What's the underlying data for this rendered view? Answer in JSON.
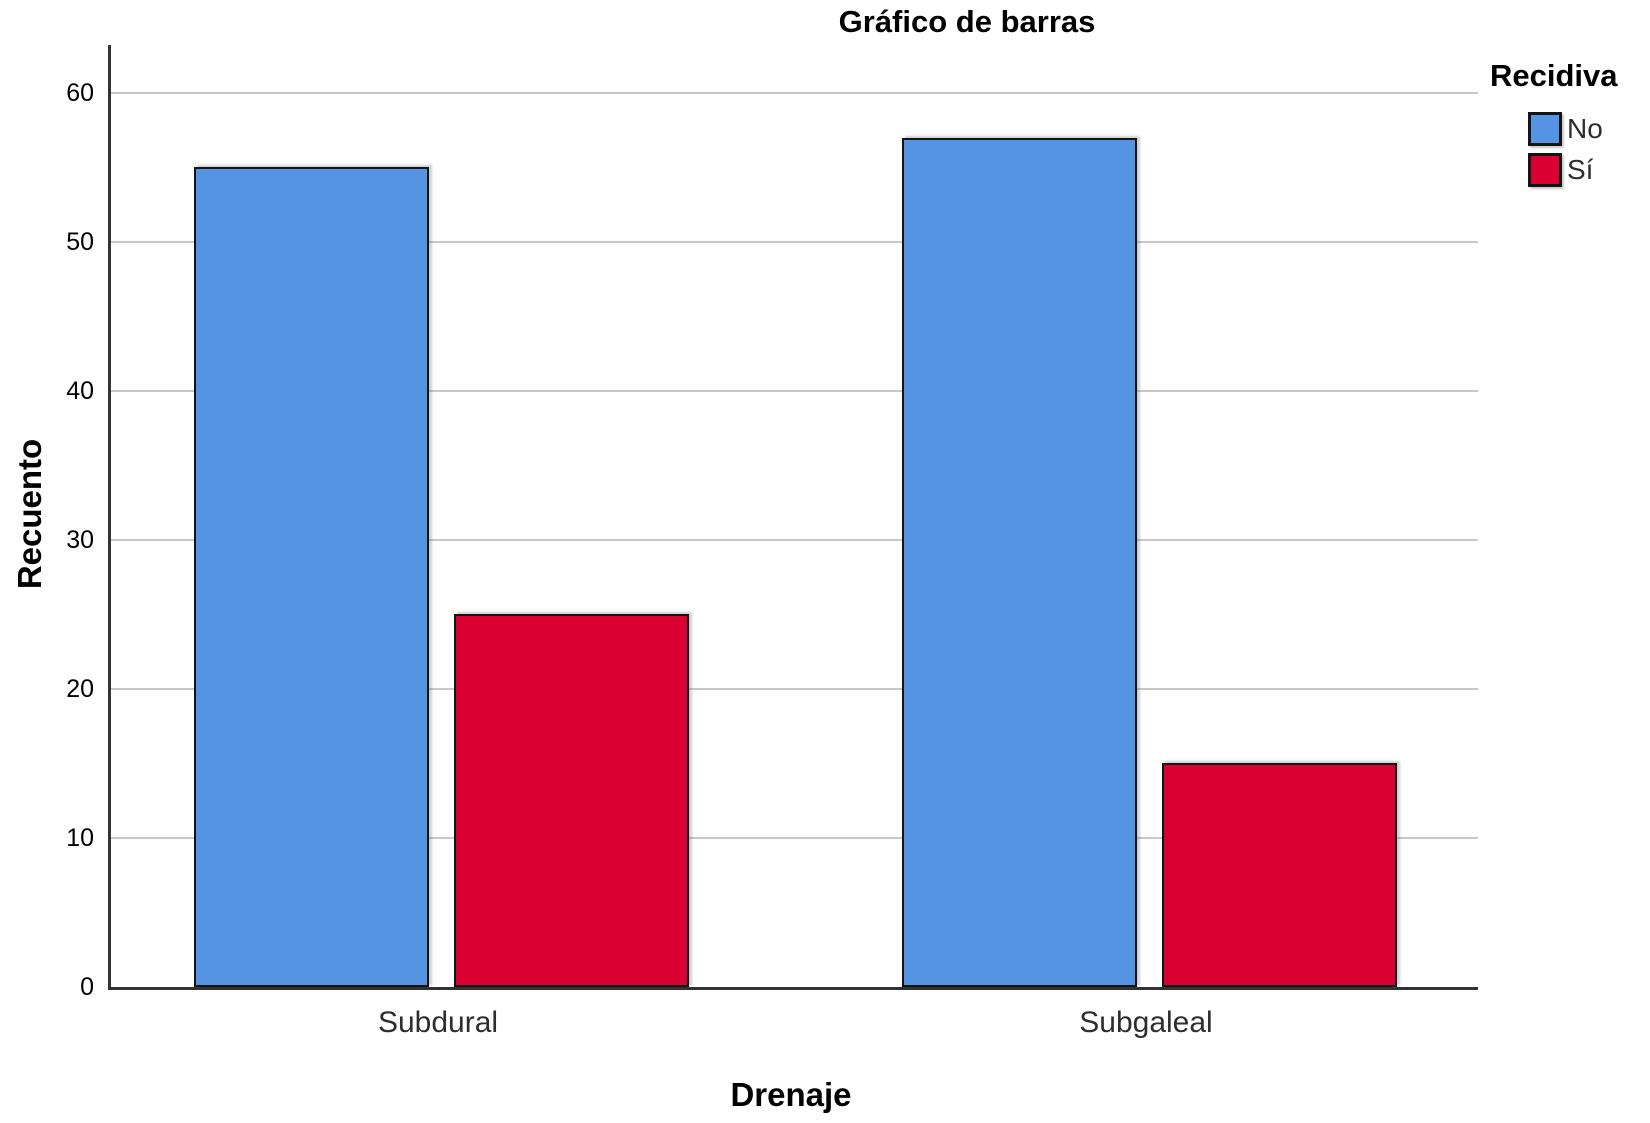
{
  "chart_data": {
    "type": "bar",
    "title": "Gráfico de barras",
    "xlabel": "Drenaje",
    "ylabel": "Recuento",
    "legend_title": "Recidiva",
    "legend_position": "top-right",
    "categories": [
      "Subdural",
      "Subgaleal"
    ],
    "series": [
      {
        "name": "No",
        "key": "no",
        "color": "#5594E3",
        "values": [
          55,
          57
        ]
      },
      {
        "name": "Sí",
        "key": "si",
        "color": "#DB0032",
        "values": [
          25,
          15
        ]
      }
    ],
    "ylim": [
      0,
      60
    ],
    "yticks": [
      0,
      10,
      20,
      30,
      40,
      50,
      60
    ],
    "grid": true,
    "bar_border_color": "#141414",
    "gridline_color": "#c8c8c8"
  }
}
